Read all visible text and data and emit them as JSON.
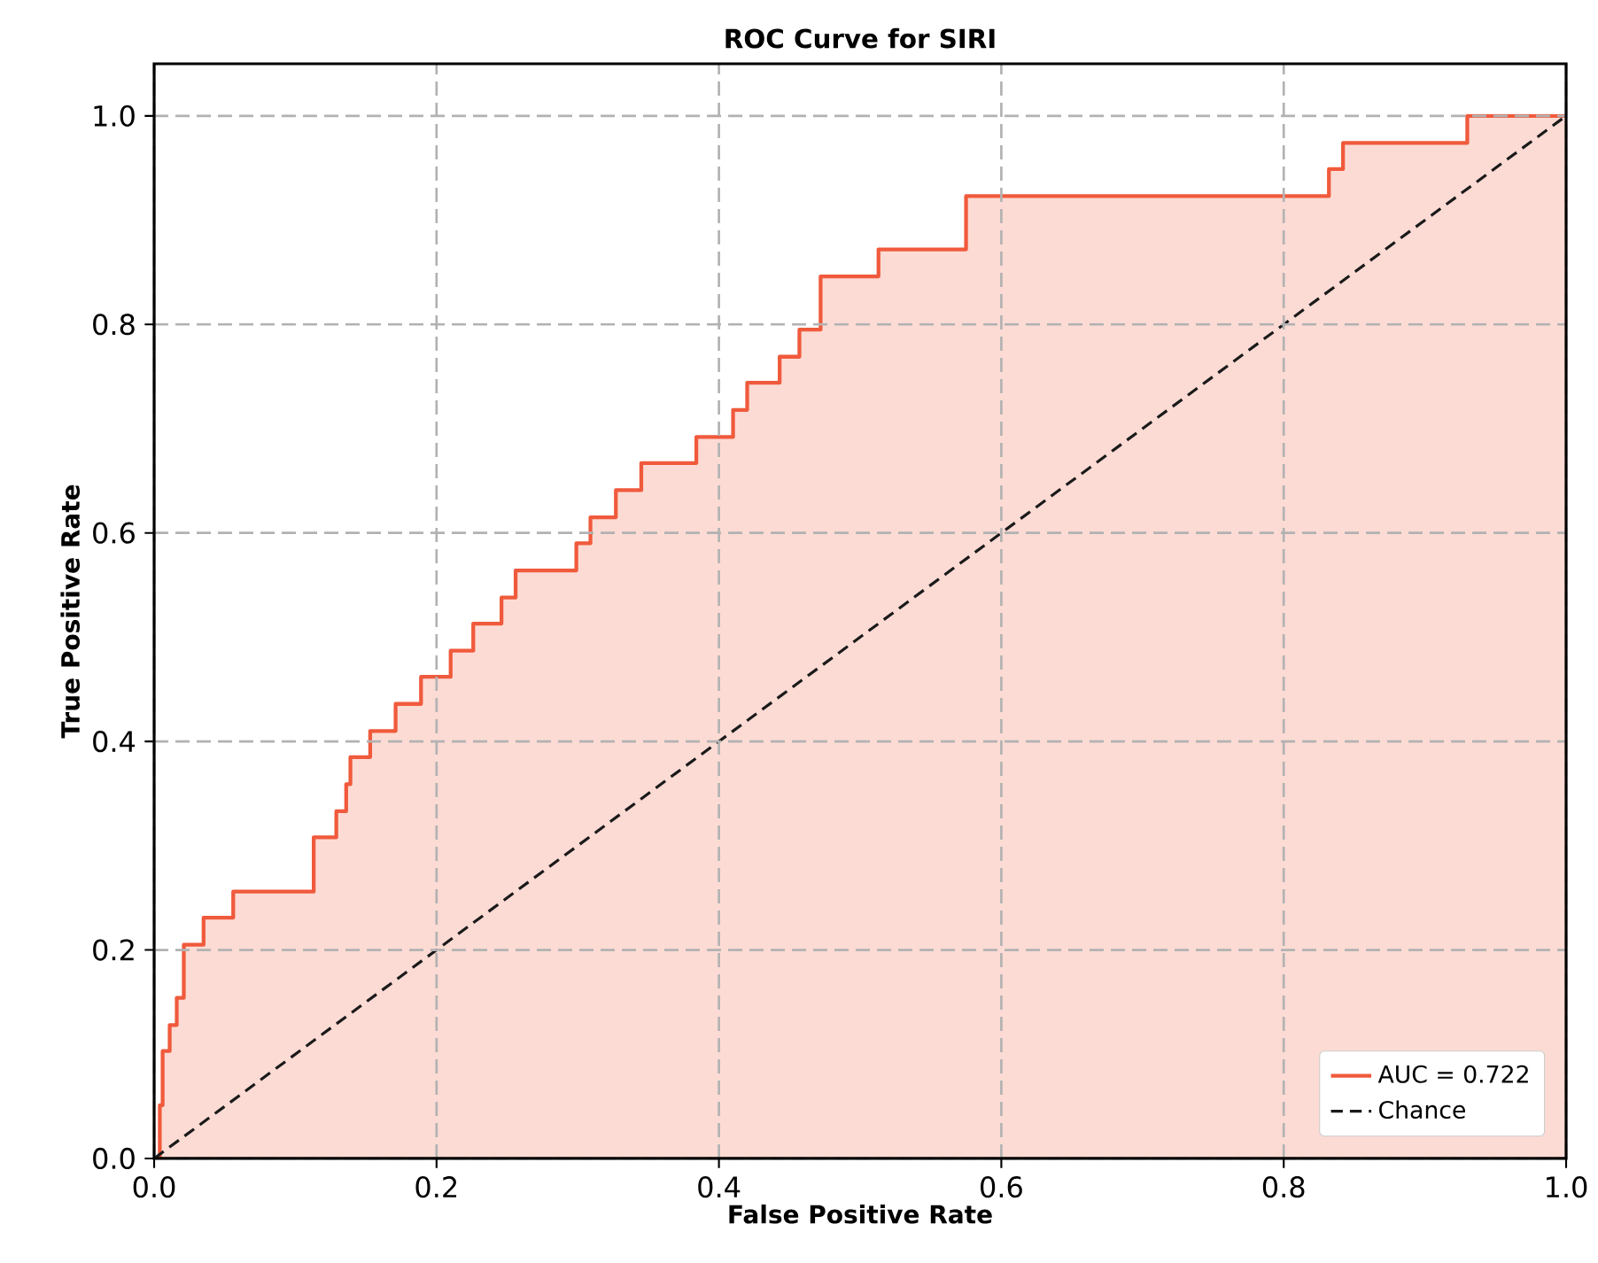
{
  "chart_data": {
    "type": "step",
    "title": "ROC Curve for SIRI",
    "xlabel": "False Positive Rate",
    "ylabel": "True Positive Rate",
    "xlim": [
      0,
      1
    ],
    "ylim": [
      0,
      1.05
    ],
    "xticks": [
      {
        "value": 0,
        "label": "0.0"
      },
      {
        "value": 0.2,
        "label": "0.2"
      },
      {
        "value": 0.4,
        "label": "0.4"
      },
      {
        "value": 0.6,
        "label": "0.6"
      },
      {
        "value": 0.8,
        "label": "0.8"
      },
      {
        "value": 1,
        "label": "1.0"
      }
    ],
    "yticks": [
      {
        "value": 0,
        "label": "0.0"
      },
      {
        "value": 0.2,
        "label": "0.2"
      },
      {
        "value": 0.4,
        "label": "0.4"
      },
      {
        "value": 0.6,
        "label": "0.6"
      },
      {
        "value": 0.8,
        "label": "0.8"
      },
      {
        "value": 1,
        "label": "1.0"
      }
    ],
    "grid": true,
    "legend": "bottom right",
    "series": [
      {
        "name": "AUC = 0.722",
        "color": "#f05a3c",
        "x": [
          0,
          0.004,
          0.006,
          0.011,
          0.016,
          0.021,
          0.035,
          0.056,
          0.113,
          0.129,
          0.136,
          0.139,
          0.153,
          0.171,
          0.189,
          0.21,
          0.226,
          0.246,
          0.256,
          0.299,
          0.309,
          0.327,
          0.345,
          0.384,
          0.41,
          0.42,
          0.443,
          0.457,
          0.472,
          0.513,
          0.575,
          0.832,
          0.842,
          0.93,
          1
        ],
        "values": [
          0,
          0.051,
          0.103,
          0.128,
          0.154,
          0.205,
          0.231,
          0.256,
          0.308,
          0.333,
          0.359,
          0.385,
          0.41,
          0.436,
          0.462,
          0.487,
          0.513,
          0.538,
          0.564,
          0.59,
          0.615,
          0.641,
          0.667,
          0.692,
          0.718,
          0.744,
          0.769,
          0.795,
          0.846,
          0.872,
          0.923,
          0.949,
          0.974,
          1.0,
          1.0
        ]
      },
      {
        "name": "Chance",
        "type": "line",
        "color": "#1a1a1a",
        "line_style": "dashed",
        "x": [
          0,
          1
        ],
        "values": [
          0,
          1
        ]
      }
    ]
  }
}
